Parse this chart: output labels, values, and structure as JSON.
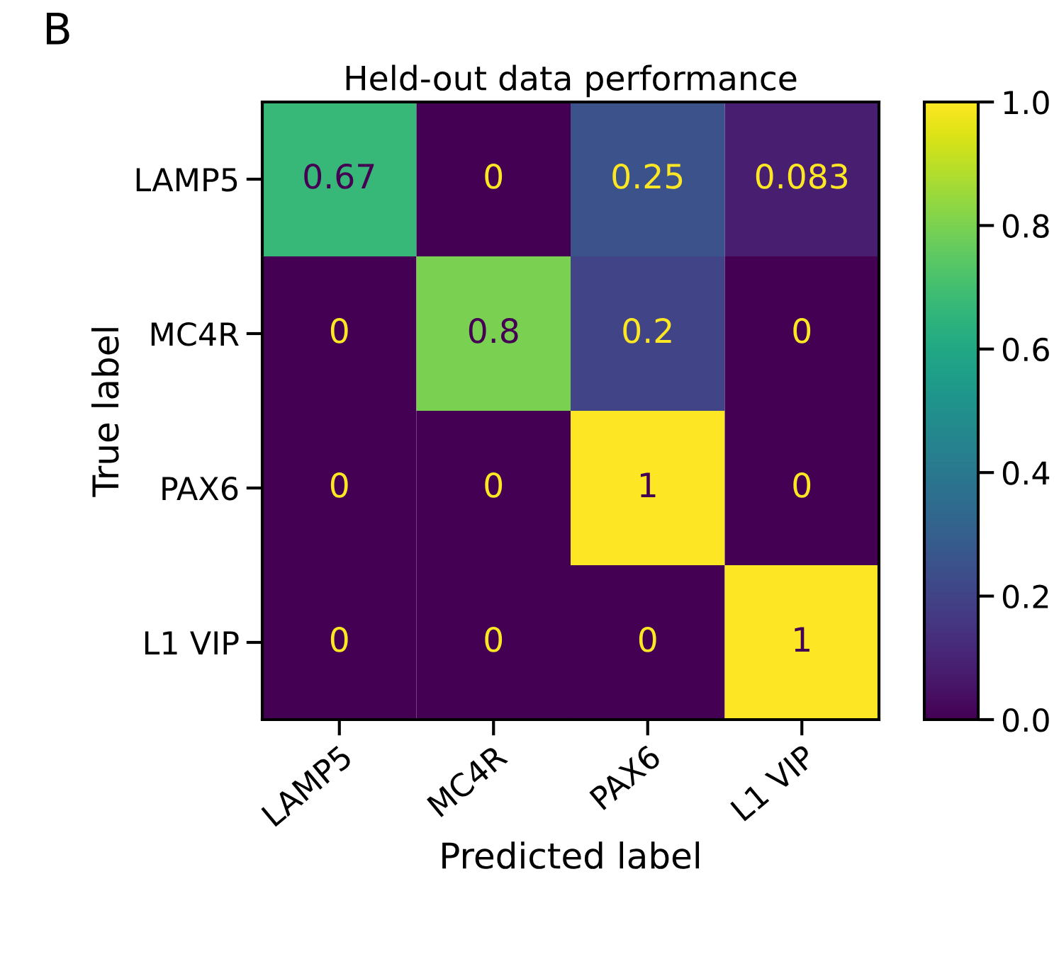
{
  "chart_data": {
    "type": "heatmap",
    "title": "Held-out data performance",
    "xlabel": "Predicted label",
    "ylabel": "True label",
    "annotations": [
      "B"
    ],
    "categories": [
      "LAMP5",
      "MC4R",
      "PAX6",
      "L1 VIP"
    ],
    "y_categories": [
      "LAMP5",
      "MC4R",
      "PAX6",
      "L1 VIP"
    ],
    "cells": [
      [
        0.67,
        0,
        0.25,
        0.083
      ],
      [
        0,
        0.8,
        0.2,
        0
      ],
      [
        0,
        0,
        1,
        0
      ],
      [
        0,
        0,
        0,
        1
      ]
    ],
    "data_labels": true,
    "clim": [
      0,
      1
    ],
    "cticks": [
      {
        "value": 0,
        "label": "0.0"
      },
      {
        "value": 0.2,
        "label": "0.2"
      },
      {
        "value": 0.4,
        "label": "0.4"
      },
      {
        "value": 0.6,
        "label": "0.6"
      },
      {
        "value": 0.8,
        "label": "0.8"
      },
      {
        "value": 1,
        "label": "1.0"
      }
    ]
  }
}
